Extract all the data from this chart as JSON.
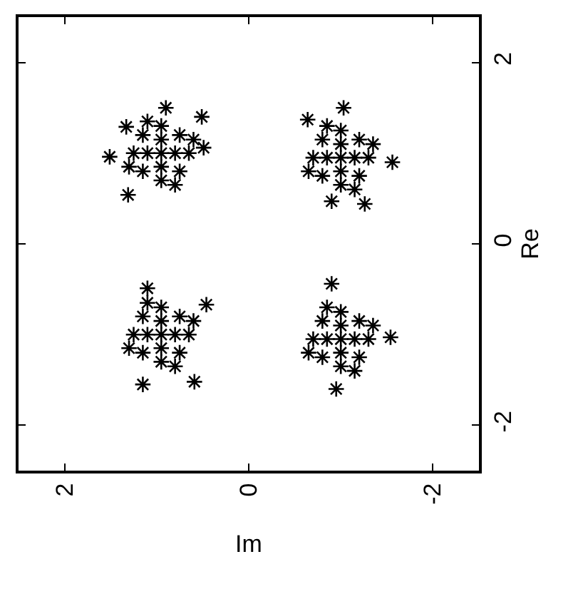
{
  "chart_data": {
    "type": "scatter",
    "xlabel": "Im",
    "ylabel": "Re",
    "color": "#000000",
    "marker": "cross",
    "grid": false,
    "xlim": [
      2.5,
      -2.5
    ],
    "ylim": [
      -2.5,
      2.5
    ],
    "xticks": [
      2,
      0,
      -2
    ],
    "yticks": [
      -2,
      0,
      2
    ],
    "x": [
      0.95,
      0.95,
      0.95,
      1.1,
      0.8,
      0.95,
      0.95,
      1.25,
      0.65,
      1.15,
      0.75,
      1.15,
      0.75,
      1.1,
      0.8,
      0.6,
      1.3,
      1.51,
      1.31,
      0.9,
      0.51,
      0.49,
      1.33,
      -1.0,
      -1.0,
      -1.0,
      -0.85,
      -1.15,
      -1.0,
      -1.0,
      -0.7,
      -1.3,
      -0.8,
      -1.2,
      -0.8,
      -1.2,
      -0.85,
      -1.15,
      -1.35,
      -0.65,
      -1.03,
      -1.56,
      -1.26,
      -0.9,
      -0.64,
      0.95,
      0.95,
      0.95,
      1.1,
      0.8,
      0.95,
      0.95,
      1.25,
      0.65,
      1.15,
      0.75,
      1.15,
      0.75,
      1.1,
      0.8,
      0.6,
      1.3,
      1.15,
      0.59,
      0.46,
      1.1,
      -1.0,
      -1.0,
      -1.0,
      -0.85,
      -1.15,
      -1.0,
      -1.0,
      -0.7,
      -1.3,
      -0.8,
      -1.2,
      -0.8,
      -1.2,
      -0.85,
      -1.15,
      -1.35,
      -0.65,
      -0.95,
      -1.54,
      -0.9
    ],
    "values": [
      1.0,
      1.15,
      0.85,
      1.0,
      1.0,
      1.3,
      0.7,
      1.0,
      1.0,
      1.2,
      1.2,
      0.8,
      0.8,
      1.35,
      0.65,
      1.15,
      0.85,
      0.96,
      0.54,
      1.5,
      1.4,
      1.06,
      1.29,
      0.95,
      1.1,
      0.8,
      0.95,
      0.95,
      1.25,
      0.65,
      0.95,
      0.95,
      1.15,
      1.15,
      0.75,
      0.75,
      1.3,
      0.6,
      1.1,
      0.8,
      1.5,
      0.9,
      0.44,
      0.47,
      1.37,
      -1.0,
      -0.85,
      -1.15,
      -1.0,
      -1.0,
      -0.7,
      -1.3,
      -1.0,
      -1.0,
      -0.8,
      -0.8,
      -1.2,
      -1.2,
      -0.65,
      -1.35,
      -0.85,
      -1.15,
      -1.55,
      -1.52,
      -0.67,
      -0.49,
      -1.05,
      -0.9,
      -1.2,
      -1.05,
      -1.05,
      -0.75,
      -1.35,
      -1.05,
      -1.05,
      -0.85,
      -0.85,
      -1.25,
      -1.25,
      -0.7,
      -1.4,
      -0.9,
      -1.2,
      -1.6,
      -1.03,
      -0.44
    ]
  }
}
